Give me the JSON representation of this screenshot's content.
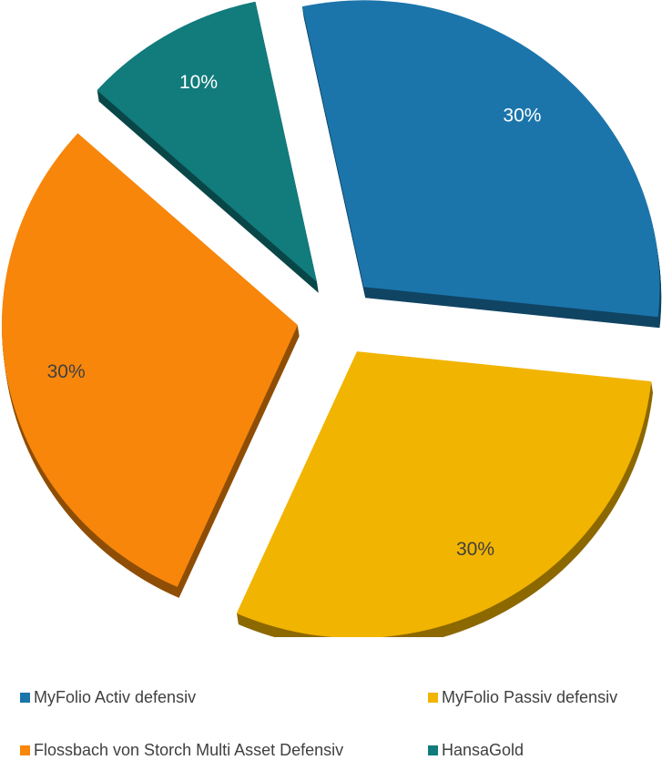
{
  "chart_data": {
    "type": "pie",
    "exploded": true,
    "style": "3d",
    "categories": [
      "MyFolio Activ defensiv",
      "MyFolio Passiv defensiv",
      "Flossbach von Storch Multi Asset Defensiv",
      "HansaGold"
    ],
    "values": [
      30,
      30,
      30,
      10
    ],
    "labels": [
      "30%",
      "30%",
      "30%",
      "10%"
    ],
    "colors": [
      "#1b75ab",
      "#f1b400",
      "#f7860b",
      "#127b7c"
    ],
    "legend_position": "bottom",
    "title": ""
  }
}
